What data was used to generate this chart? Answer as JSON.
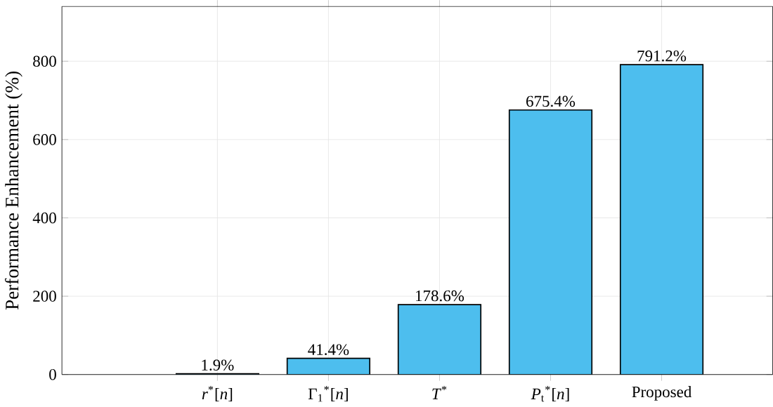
{
  "chart_data": {
    "type": "bar",
    "ylabel": "Performance Enhancement (%)",
    "categories": [
      "*r*$^{*}$[*n*]",
      "Γ$_{1}$$^{*}$[*n*]",
      "*T*$^{*}$",
      "*P*$_{t}$$^{*}$[*n*]",
      "Proposed"
    ],
    "values": [
      1.9,
      41.4,
      178.6,
      675.4,
      791.2
    ],
    "value_labels": [
      "1.9%",
      "41.4%",
      "178.6%",
      "675.4%",
      "791.2%"
    ],
    "color": "#4dbeee",
    "ylim": [
      0,
      940
    ],
    "yticks": [
      0,
      200,
      400,
      600,
      800
    ],
    "grid": true
  }
}
